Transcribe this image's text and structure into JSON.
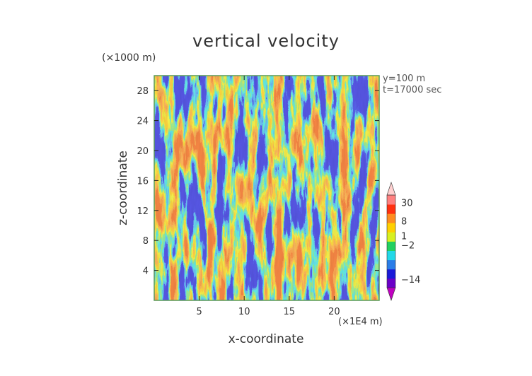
{
  "chart_data": {
    "type": "heatmap",
    "title": "vertical velocity",
    "xlabel": "x-coordinate",
    "ylabel": "z-coordinate",
    "x_units": "(×1E4 m)",
    "y_units": "(×1000 m)",
    "annotations": [
      "y=100 m",
      "t=17000 sec"
    ],
    "xlim": [
      0,
      25
    ],
    "ylim": [
      0,
      30
    ],
    "x_ticks": [
      5,
      10,
      15,
      20
    ],
    "x_tick_labels": [
      "5",
      "10",
      "15",
      "20"
    ],
    "y_ticks": [
      4,
      8,
      12,
      16,
      20,
      24,
      28
    ],
    "y_tick_labels": [
      "4",
      "8",
      "12",
      "16",
      "20",
      "24",
      "28"
    ],
    "colorbar": {
      "labels": [
        "30",
        "8",
        "1",
        "−2",
        "−14"
      ],
      "levels": [
        -14,
        -2,
        1,
        8,
        30
      ],
      "colors": [
        "#c000c0",
        "#6a00c8",
        "#1a1ad8",
        "#2a7de8",
        "#22d8e8",
        "#22d060",
        "#d8f020",
        "#ffd000",
        "#ff8c20",
        "#ff3010",
        "#ff8080",
        "#ffd0d0"
      ]
    },
    "grid": false
  }
}
